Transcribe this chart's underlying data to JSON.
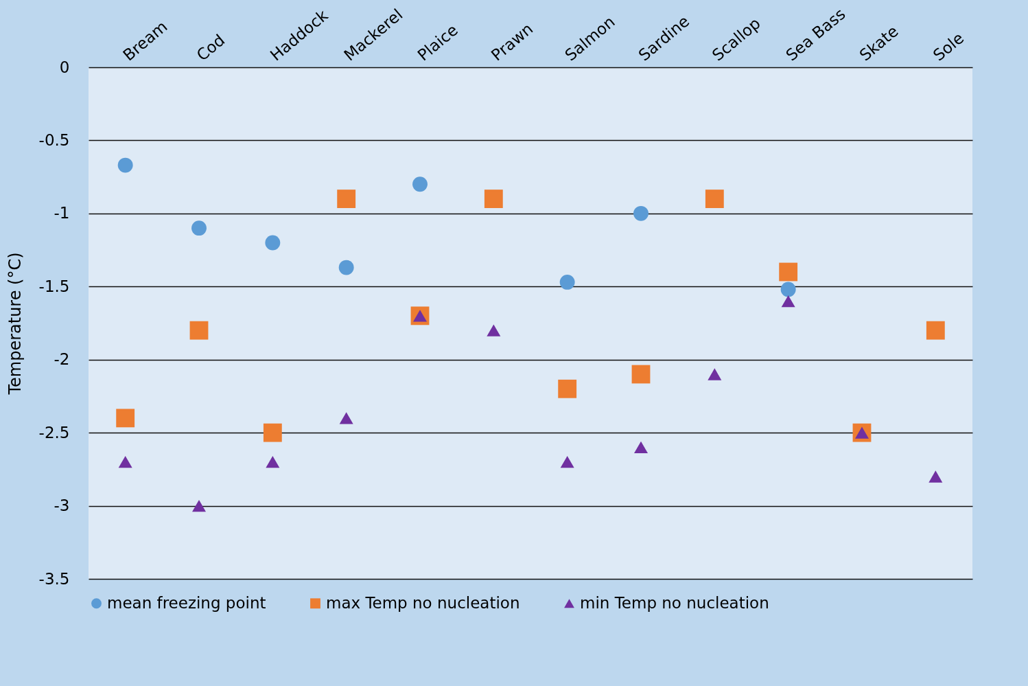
{
  "chart_data": {
    "type": "scatter",
    "ylabel": "Temperature (°C)",
    "categories": [
      "Bream",
      "Cod",
      "Haddock",
      "Mackerel",
      "Plaice",
      "Prawn",
      "Salmon",
      "Sardine",
      "Scallop",
      "Sea Bass",
      "Skate",
      "Sole"
    ],
    "series": [
      {
        "name": "mean freezing point",
        "color": "#5b9bd5",
        "marker": "circle",
        "values": [
          -0.67,
          -1.1,
          -1.2,
          -1.37,
          -0.8,
          null,
          -1.47,
          -1.0,
          null,
          -1.52,
          null,
          null
        ]
      },
      {
        "name": "max Temp no nucleation",
        "color": "#ed7d31",
        "marker": "square",
        "values": [
          -2.4,
          -1.8,
          -2.5,
          -0.9,
          -1.7,
          -0.9,
          -2.2,
          -2.1,
          -0.9,
          -1.4,
          -2.5,
          -1.8
        ]
      },
      {
        "name": "min Temp no nucleation",
        "color": "#7030a0",
        "marker": "triangle",
        "values": [
          -2.7,
          -3.0,
          -2.7,
          -2.4,
          -1.7,
          -1.8,
          -2.7,
          -2.6,
          -2.1,
          -1.6,
          -2.5,
          -2.8
        ]
      }
    ],
    "ylim": [
      -3.5,
      0
    ],
    "yticks": [
      0,
      -0.5,
      -1,
      -1.5,
      -2,
      -2.5,
      -3,
      -3.5
    ],
    "grid": "y",
    "legend": "bottom"
  }
}
